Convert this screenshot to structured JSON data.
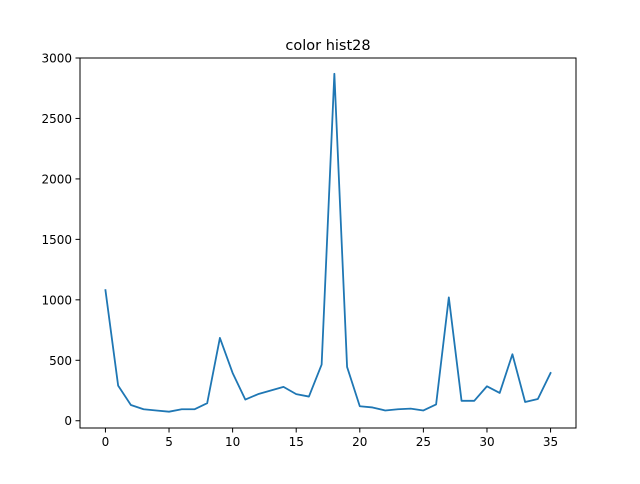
{
  "chart_data": {
    "type": "line",
    "title": "color hist28",
    "xlabel": "",
    "ylabel": "",
    "xlim": [
      -2,
      37
    ],
    "ylim": [
      -60,
      3000
    ],
    "xticks": [
      0,
      5,
      10,
      15,
      20,
      25,
      30,
      35
    ],
    "yticks": [
      0,
      500,
      1000,
      1500,
      2000,
      2500,
      3000
    ],
    "grid": false,
    "legend": "none",
    "series": [
      {
        "color": "#1f77b4",
        "x": [
          0,
          1,
          2,
          3,
          4,
          5,
          6,
          7,
          8,
          9,
          10,
          11,
          12,
          13,
          14,
          15,
          16,
          17,
          18,
          19,
          20,
          21,
          22,
          23,
          24,
          25,
          26,
          27,
          28,
          29,
          30,
          31,
          32,
          33,
          34,
          35
        ],
        "y": [
          1080,
          290,
          130,
          95,
          85,
          75,
          95,
          95,
          145,
          685,
          395,
          175,
          220,
          250,
          280,
          220,
          200,
          465,
          2870,
          445,
          120,
          110,
          85,
          95,
          100,
          85,
          135,
          1020,
          165,
          165,
          285,
          230,
          550,
          155,
          180,
          395
        ]
      }
    ]
  }
}
